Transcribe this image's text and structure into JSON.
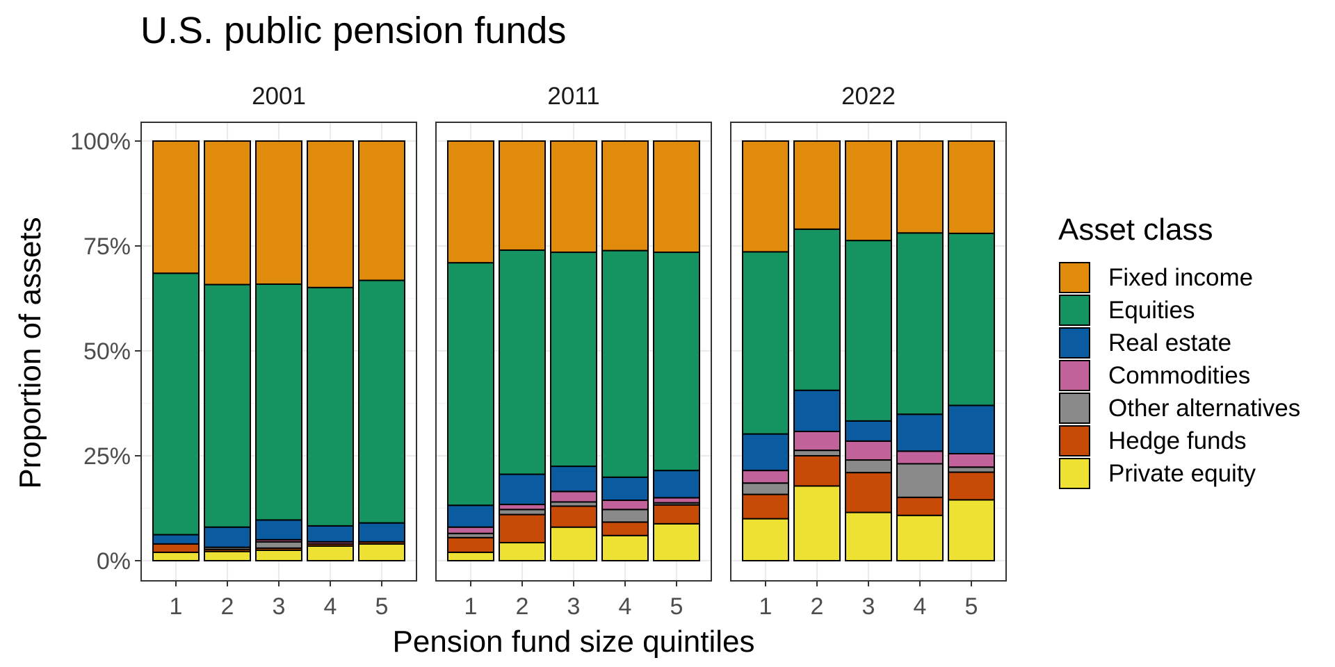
{
  "chart_data": {
    "type": "bar",
    "stacked": true,
    "percent": true,
    "title": "U.S. public pension funds",
    "xlabel": "Pension fund size quintiles",
    "ylabel": "Proportion of assets",
    "ylim": [
      0,
      1
    ],
    "y_ticks": [
      0,
      0.25,
      0.5,
      0.75,
      1.0
    ],
    "y_tick_labels": [
      "0%",
      "25%",
      "50%",
      "75%",
      "100%"
    ],
    "categories": [
      "1",
      "2",
      "3",
      "4",
      "5"
    ],
    "grid": true,
    "legend": {
      "title": "Asset class",
      "position": "right"
    },
    "series": [
      {
        "name": "Fixed income",
        "color": "#E08B0B"
      },
      {
        "name": "Equities",
        "color": "#159361"
      },
      {
        "name": "Real estate",
        "color": "#0B5BA1"
      },
      {
        "name": "Commodities",
        "color": "#C2629B"
      },
      {
        "name": "Other alternatives",
        "color": "#8A8A8A"
      },
      {
        "name": "Hedge funds",
        "color": "#C74A07"
      },
      {
        "name": "Private equity",
        "color": "#EDE134"
      }
    ],
    "stack_order_bottom_to_top": [
      "Private equity",
      "Hedge funds",
      "Other alternatives",
      "Commodities",
      "Real estate",
      "Equities",
      "Fixed income"
    ],
    "panels": [
      {
        "label": "2001",
        "values": {
          "Private equity": [
            0.02,
            0.022,
            0.025,
            0.035,
            0.04
          ],
          "Hedge funds": [
            0.02,
            0.005,
            0.005,
            0.005,
            0.005
          ],
          "Other alternatives": [
            0.0,
            0.005,
            0.015,
            0.0,
            0.0
          ],
          "Commodities": [
            0.0,
            0.0,
            0.005,
            0.005,
            0.0
          ],
          "Real estate": [
            0.022,
            0.048,
            0.047,
            0.038,
            0.045
          ],
          "Equities": [
            0.623,
            0.578,
            0.562,
            0.568,
            0.578
          ],
          "Fixed income": [
            0.315,
            0.342,
            0.341,
            0.349,
            0.332
          ]
        }
      },
      {
        "label": "2011",
        "values": {
          "Private equity": [
            0.02,
            0.043,
            0.08,
            0.06,
            0.088
          ],
          "Hedge funds": [
            0.035,
            0.067,
            0.05,
            0.032,
            0.045
          ],
          "Other alternatives": [
            0.01,
            0.012,
            0.01,
            0.03,
            0.005
          ],
          "Commodities": [
            0.015,
            0.012,
            0.025,
            0.022,
            0.012
          ],
          "Real estate": [
            0.052,
            0.072,
            0.06,
            0.055,
            0.065
          ],
          "Equities": [
            0.578,
            0.534,
            0.51,
            0.54,
            0.52
          ],
          "Fixed income": [
            0.29,
            0.26,
            0.265,
            0.261,
            0.265
          ]
        }
      },
      {
        "label": "2022",
        "values": {
          "Private equity": [
            0.1,
            0.178,
            0.115,
            0.108,
            0.145
          ],
          "Hedge funds": [
            0.058,
            0.072,
            0.095,
            0.043,
            0.066
          ],
          "Other alternatives": [
            0.027,
            0.013,
            0.03,
            0.08,
            0.012
          ],
          "Commodities": [
            0.03,
            0.045,
            0.045,
            0.03,
            0.032
          ],
          "Real estate": [
            0.087,
            0.098,
            0.048,
            0.088,
            0.115
          ],
          "Equities": [
            0.434,
            0.384,
            0.43,
            0.432,
            0.41
          ],
          "Fixed income": [
            0.264,
            0.21,
            0.237,
            0.219,
            0.22
          ]
        }
      }
    ]
  }
}
